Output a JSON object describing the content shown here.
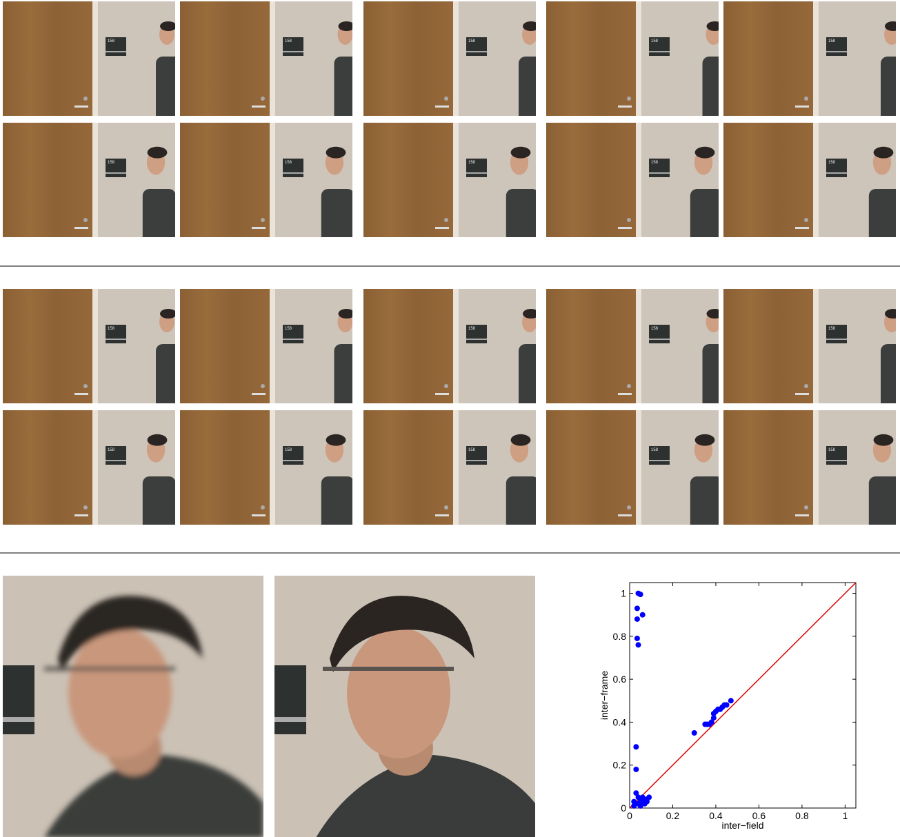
{
  "frames": {
    "sign_text": "158"
  },
  "chart_data": {
    "type": "scatter",
    "xlabel": "inter−field",
    "ylabel": "inter−frame",
    "xlim": [
      0,
      1.05
    ],
    "ylim": [
      0,
      1.05
    ],
    "xticks": [
      0,
      0.2,
      0.4,
      0.6,
      0.8,
      1
    ],
    "yticks": [
      0,
      0.2,
      0.4,
      0.6,
      0.8,
      1
    ],
    "color": "#0000ff",
    "diagonal": true,
    "diagonal_color": "#dd0000",
    "x": [
      0.04,
      0.05,
      0.035,
      0.06,
      0.035,
      0.035,
      0.04,
      0.03,
      0.03,
      0.3,
      0.35,
      0.36,
      0.37,
      0.38,
      0.39,
      0.39,
      0.4,
      0.41,
      0.42,
      0.43,
      0.44,
      0.45,
      0.47,
      0.03,
      0.02,
      0.04,
      0.05,
      0.06,
      0.07,
      0.08,
      0.09,
      0.05,
      0.04,
      0.07,
      0.02,
      0.06,
      0.08
    ],
    "y": [
      1.0,
      0.995,
      0.93,
      0.9,
      0.88,
      0.79,
      0.76,
      0.285,
      0.18,
      0.35,
      0.39,
      0.39,
      0.39,
      0.4,
      0.44,
      0.42,
      0.45,
      0.46,
      0.46,
      0.47,
      0.48,
      0.48,
      0.5,
      0.07,
      0.03,
      0.05,
      0.04,
      0.03,
      0.02,
      0.04,
      0.05,
      0.01,
      0.02,
      0.04,
      0.01,
      0.05,
      0.03
    ]
  }
}
